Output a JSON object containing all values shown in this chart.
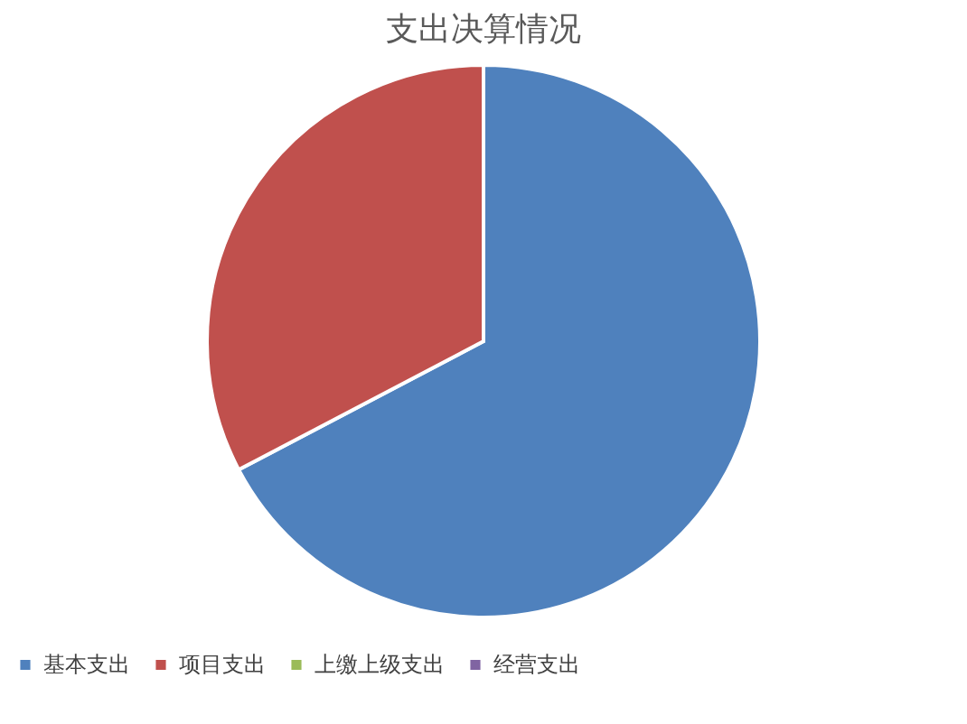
{
  "chart_data": {
    "type": "pie",
    "title": "支出决算情况",
    "categories": [
      "基本支出",
      "项目支出",
      "上缴上级支出",
      "经营支出"
    ],
    "values": [
      67.3,
      32.7,
      0,
      0
    ],
    "colors": [
      "#4f81bd",
      "#c0504d",
      "#9bbb59",
      "#8064a2"
    ],
    "legend": "bottom"
  }
}
